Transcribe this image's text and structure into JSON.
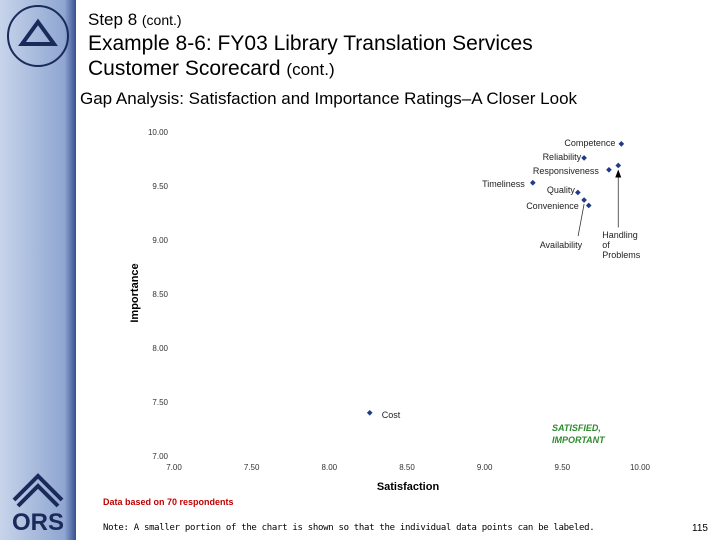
{
  "header": {
    "step": "Step 8",
    "step_suffix": "(cont.)",
    "title_line1": "Example 8-6: FY03 Library Translation Services",
    "title_line2": "Customer Scorecard",
    "title_suffix": "(cont.)"
  },
  "chart_data": {
    "type": "scatter",
    "title": "Gap Analysis:  Satisfaction and Importance Ratings–A Closer Look",
    "x_label": "Satisfaction",
    "y_label": "Importance",
    "color": "#1f3a8a",
    "points": [
      {
        "label": "Competence",
        "x": 9.88,
        "y": 9.89
      },
      {
        "label": "Reliability",
        "x": 9.64,
        "y": 9.76
      },
      {
        "label": "Responsiveness",
        "x": 9.8,
        "y": 9.65
      },
      {
        "label": "Timeliness",
        "x": 9.31,
        "y": 9.53
      },
      {
        "label": "Quality",
        "x": 9.6,
        "y": 9.44
      },
      {
        "label": "Convenience",
        "x": 9.67,
        "y": 9.32
      },
      {
        "label": "Availability",
        "x": 9.64,
        "y": 9.37
      },
      {
        "label": "Handling of Problems",
        "x": 9.86,
        "y": 9.69
      },
      {
        "label": "Cost",
        "x": 8.26,
        "y": 7.4
      }
    ],
    "xlim": [
      7,
      10
    ],
    "ylim": [
      7,
      10
    ],
    "xticks": [
      {
        "value": 7,
        "label": "7.00"
      },
      {
        "value": 7.5,
        "label": "7.50"
      },
      {
        "value": 8,
        "label": "8.00"
      },
      {
        "value": 8.5,
        "label": "8.50"
      },
      {
        "value": 9,
        "label": "9.00"
      },
      {
        "value": 9.5,
        "label": "9.50"
      },
      {
        "value": 10,
        "label": "10.00"
      }
    ],
    "yticks": [
      {
        "value": 7,
        "label": "7.00"
      },
      {
        "value": 7.5,
        "label": "7.50"
      },
      {
        "value": 8,
        "label": "8.00"
      },
      {
        "value": 8.5,
        "label": "8.50"
      },
      {
        "value": 9,
        "label": "9.00"
      },
      {
        "value": 9.5,
        "label": "9.50"
      },
      {
        "value": 10,
        "label": "10.00"
      }
    ],
    "quadrant_label": [
      "SATISFIED,",
      "IMPORTANT"
    ]
  },
  "respondents_note": "Data based on 70 respondents",
  "footnote": "Note:  A  smaller portion of the chart is shown so that the individual data points can be labeled.",
  "page_number": "115"
}
